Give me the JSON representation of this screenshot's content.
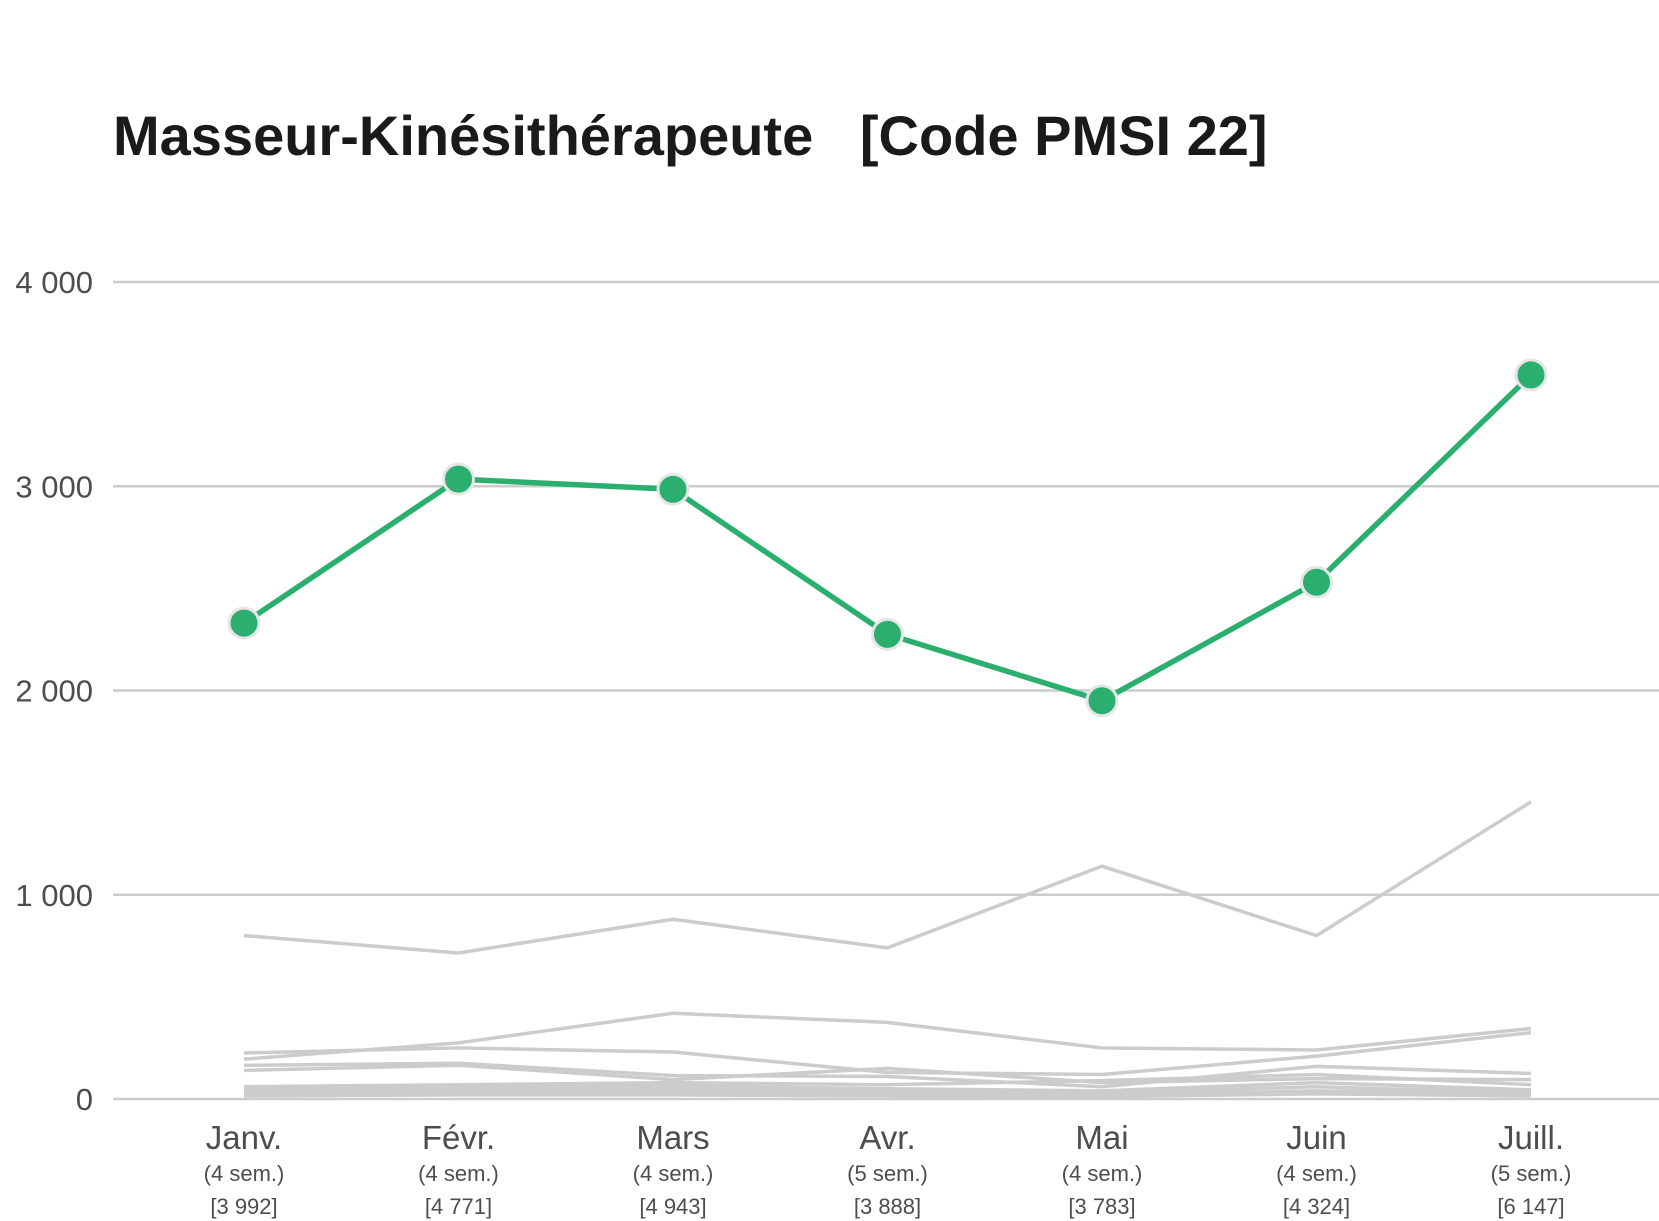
{
  "chart_data": {
    "type": "line",
    "title": "Masseur-Kinésithérapeute   [Code PMSI 22]",
    "xlabel": "",
    "ylabel": "",
    "ylim": [
      0,
      4000
    ],
    "yticks": [
      0,
      1000,
      2000,
      3000,
      4000
    ],
    "ytick_labels": [
      "0",
      "1 000",
      "2 000",
      "3 000",
      "4 000"
    ],
    "grid": true,
    "categories": [
      "Janv.",
      "Févr.",
      "Mars",
      "Avr.",
      "Mai",
      "Juin",
      "Juill."
    ],
    "category_weeks": [
      "(4 sem.)",
      "(4 sem.)",
      "(4 sem.)",
      "(5 sem.)",
      "(4 sem.)",
      "(4 sem.)",
      "(5 sem.)"
    ],
    "category_totals": [
      "[3 992]",
      "[4 771]",
      "[4 943]",
      "[3 888]",
      "[3 783]",
      "[4 324]",
      "[6 147]"
    ],
    "highlight_color": "#2aaf6e",
    "background_color": "#cccccc",
    "highlight": {
      "values": [
        2330,
        3035,
        2985,
        2275,
        1950,
        2530,
        3545
      ]
    },
    "background_series": [
      {
        "values": [
          800,
          715,
          880,
          740,
          1140,
          800,
          1455
        ]
      },
      {
        "values": [
          195,
          275,
          420,
          375,
          250,
          240,
          345
        ]
      },
      {
        "values": [
          225,
          250,
          230,
          130,
          120,
          210,
          325
        ]
      },
      {
        "values": [
          165,
          175,
          115,
          110,
          60,
          160,
          125
        ]
      },
      {
        "values": [
          140,
          165,
          95,
          150,
          80,
          100,
          95
        ]
      },
      {
        "values": [
          60,
          70,
          80,
          70,
          90,
          120,
          70
        ]
      },
      {
        "values": [
          50,
          55,
          65,
          50,
          40,
          80,
          45
        ]
      },
      {
        "values": [
          35,
          45,
          50,
          40,
          30,
          60,
          30
        ]
      },
      {
        "values": [
          25,
          30,
          35,
          30,
          20,
          40,
          25
        ]
      },
      {
        "values": [
          15,
          20,
          20,
          15,
          12,
          25,
          15
        ]
      }
    ]
  }
}
